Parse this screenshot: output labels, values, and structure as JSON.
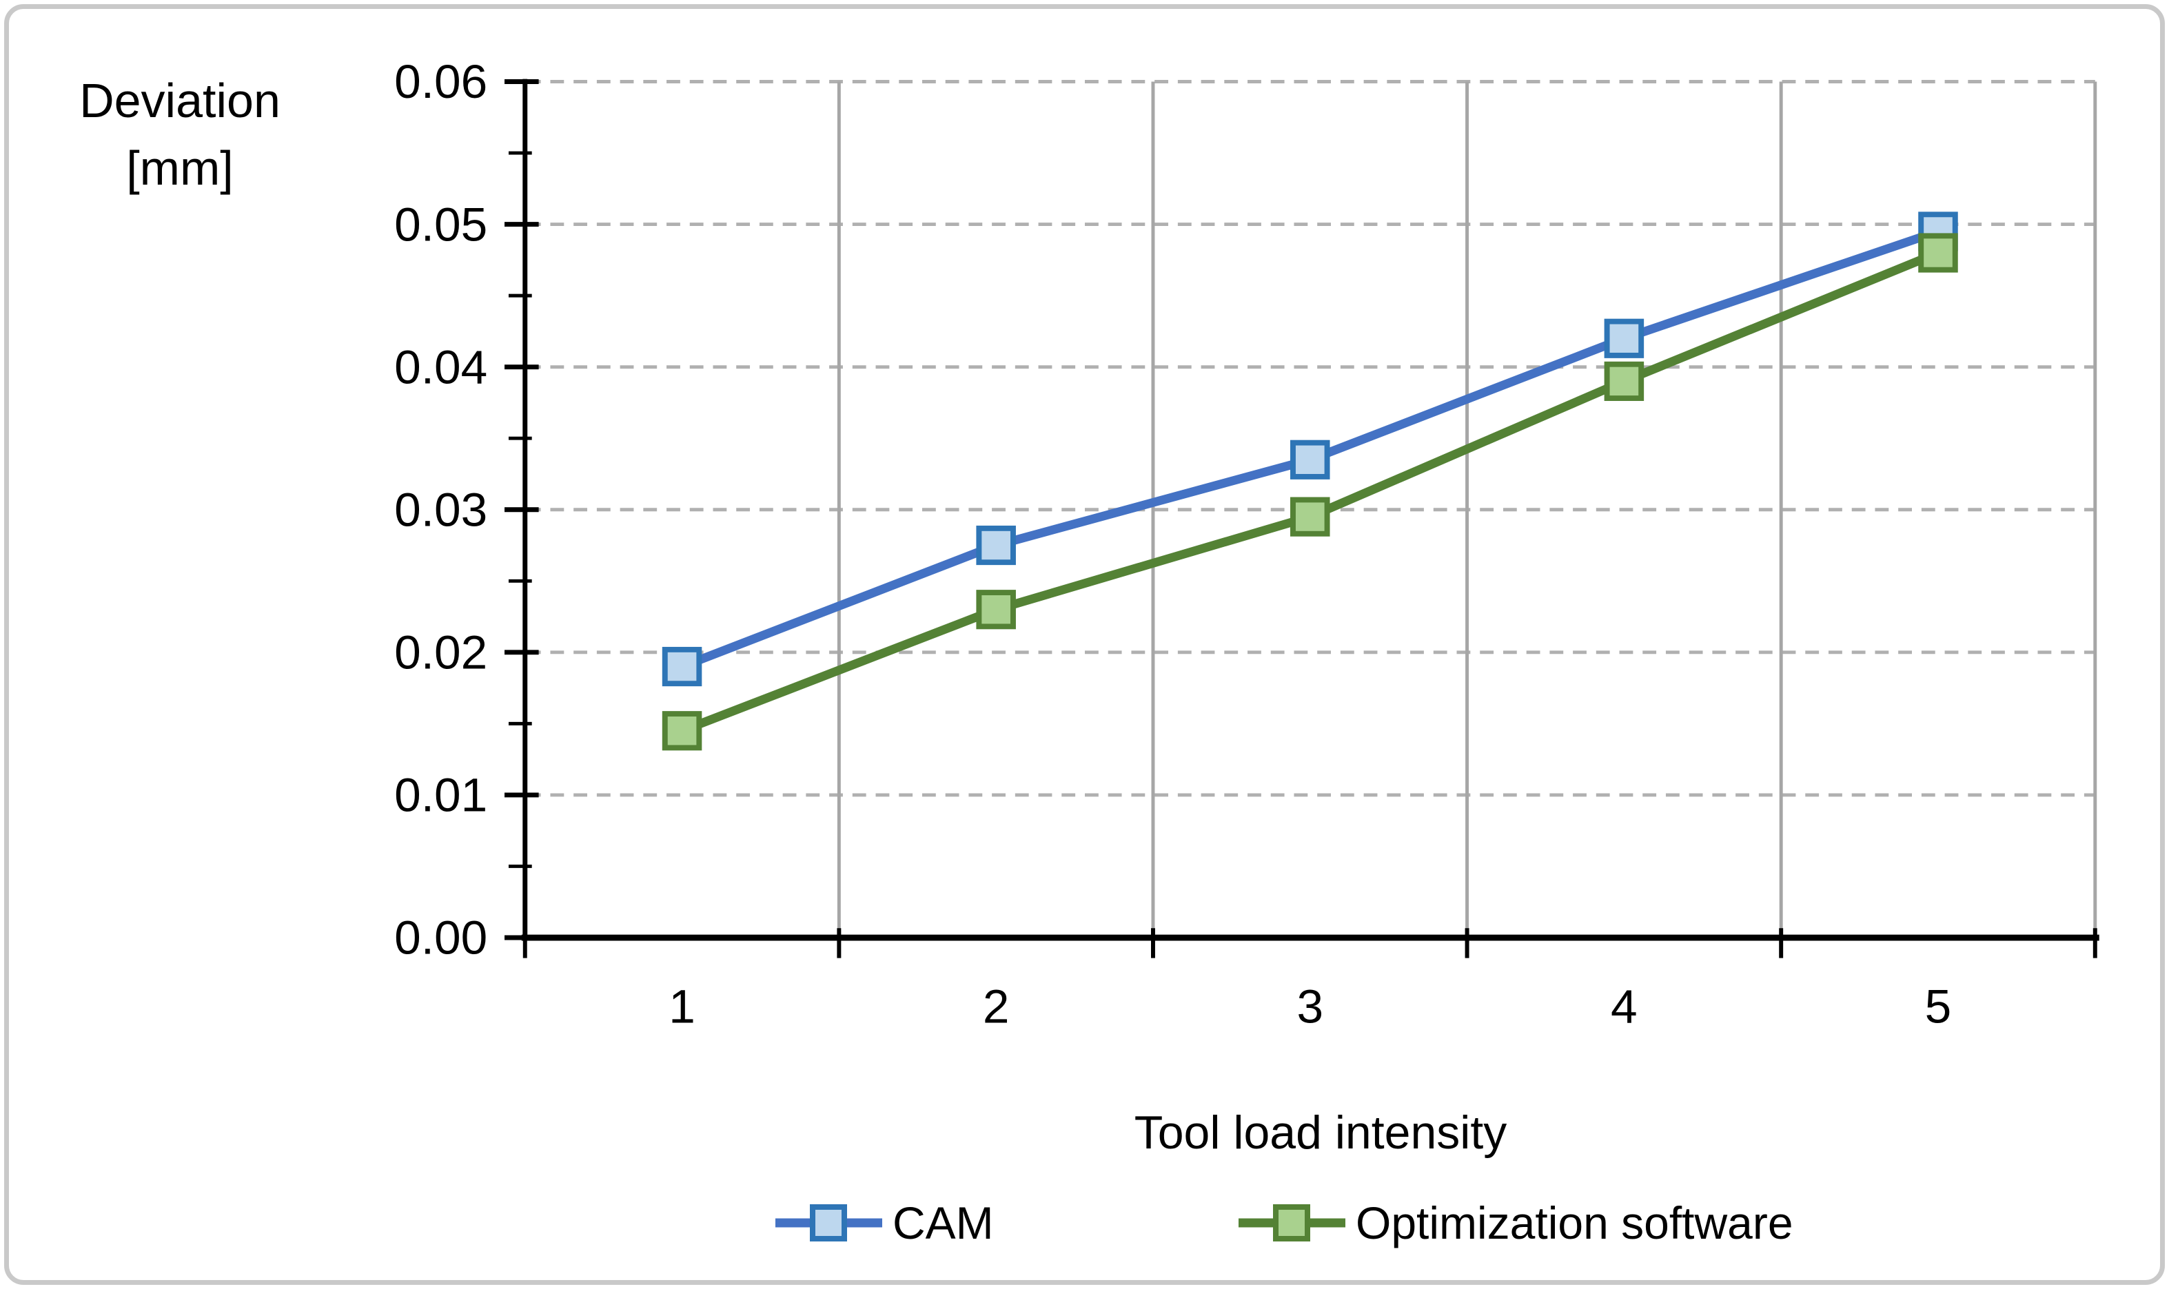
{
  "figure": {
    "background": "#ffffff",
    "border_color": "#c9c9c9"
  },
  "chart_data": {
    "type": "line",
    "title": "",
    "x_axis": {
      "label": "Tool load intensity",
      "categories": [
        "1",
        "2",
        "3",
        "4",
        "5"
      ]
    },
    "y_axis": {
      "label_lines": [
        "Deviation",
        "[mm]"
      ],
      "ylim": [
        0,
        0.06
      ],
      "major_step": 0.01,
      "minor_step": 0.005,
      "tick_labels": [
        "0.00",
        "0.01",
        "0.02",
        "0.03",
        "0.04",
        "0.05",
        "0.06"
      ]
    },
    "grid": {
      "horizontal_style": "dashed",
      "horizontal_color": "#b0b0b0",
      "vertical_style": "solid",
      "vertical_color": "#a6a6a6"
    },
    "axis_color": "#000000",
    "legend": {
      "position": "bottom"
    },
    "series": [
      {
        "name": "CAM",
        "values": [
          0.019,
          0.0275,
          0.0335,
          0.042,
          0.0495
        ],
        "line_color": "#4472c4",
        "marker": "square",
        "marker_fill": "#bdd7ee",
        "marker_border": "#2e75b6"
      },
      {
        "name": "Optimization software",
        "values": [
          0.0145,
          0.023,
          0.0295,
          0.039,
          0.048
        ],
        "line_color": "#548235",
        "marker": "square",
        "marker_fill": "#a9d18e",
        "marker_border": "#548235"
      }
    ]
  }
}
